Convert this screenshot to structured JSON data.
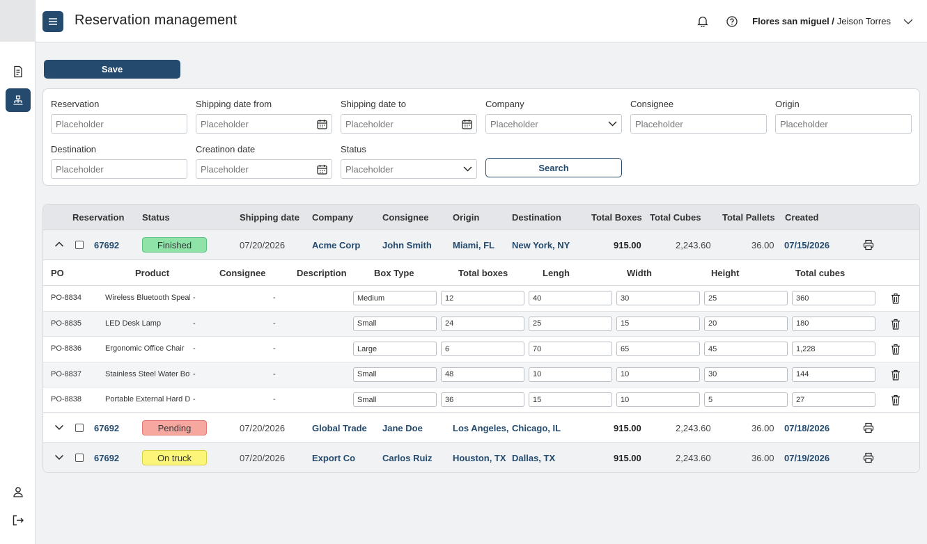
{
  "app": {
    "title": "Reservation management",
    "user_company": "Flores san miguel /",
    "user_name": "Jeison Torres"
  },
  "toolbar": {
    "save_label": "Save"
  },
  "filters": {
    "reservation": {
      "label": "Reservation",
      "placeholder": "Placeholder"
    },
    "shipping_from": {
      "label": "Shipping date from",
      "placeholder": "Placeholder"
    },
    "shipping_to": {
      "label": "Shipping date to",
      "placeholder": "Placeholder"
    },
    "company": {
      "label": "Company",
      "placeholder": "Placeholder"
    },
    "consignee": {
      "label": "Consignee",
      "placeholder": "Placeholder"
    },
    "origin": {
      "label": "Origin",
      "placeholder": "Placeholder"
    },
    "destination": {
      "label": "Destination",
      "placeholder": "Placeholder"
    },
    "creation_date": {
      "label": "Creatinon date",
      "placeholder": "Placeholder"
    },
    "status": {
      "label": "Status",
      "placeholder": "Placeholder"
    },
    "search_label": "Search"
  },
  "table": {
    "columns": {
      "reservation": "Reservation",
      "status": "Status",
      "shipping_date": "Shipping date",
      "company": "Company",
      "consignee": "Consignee",
      "origin": "Origin",
      "destination": "Destination",
      "total_boxes": "Total Boxes",
      "total_cubes": "Total Cubes",
      "total_pallets": "Total Pallets",
      "created": "Created"
    },
    "rows": [
      {
        "id": "67692",
        "status": "Finished",
        "shipping_date": "07/20/2026",
        "company": "Acme Corp",
        "consignee": "John Smith",
        "origin": "Miami, FL",
        "destination": "New York, NY",
        "total_boxes": "915.00",
        "total_cubes": "2,243.60",
        "total_pallets": "36.00",
        "created": "07/15/2026"
      },
      {
        "id": "67692",
        "status": "Pending",
        "shipping_date": "07/20/2026",
        "company": "Global Trade",
        "consignee": "Jane Doe",
        "origin": "Los Angeles, CA",
        "destination": "Chicago, IL",
        "total_boxes": "915.00",
        "total_cubes": "2,243.60",
        "total_pallets": "36.00",
        "created": "07/18/2026"
      },
      {
        "id": "67692",
        "status": "On truck",
        "shipping_date": "07/20/2026",
        "company": "Export Co",
        "consignee": "Carlos Ruiz",
        "origin": "Houston, TX",
        "destination": "Dallas, TX",
        "total_boxes": "915.00",
        "total_cubes": "2,243.60",
        "total_pallets": "36.00",
        "created": "07/19/2026"
      }
    ],
    "status_colors": {
      "finished_bg": "#8fe3a9",
      "finished_border": "#5cc27d",
      "pending_bg": "#f6a7a0",
      "pending_border": "#e37b72",
      "ontruck_bg": "#fbf57a",
      "ontruck_border": "#d6cf3e"
    }
  },
  "detail": {
    "columns": {
      "po": "PO",
      "product": "Product",
      "consignee": "Consignee",
      "description": "Description",
      "box_type": "Box Type",
      "total_boxes": "Total boxes",
      "length": "Lengh",
      "width": "Width",
      "height": "Height",
      "total_cubes": "Total cubes"
    },
    "items": [
      {
        "po": "PO-8834",
        "product": "Wireless Bluetooth Speaker",
        "consignee": "-",
        "description": "-",
        "box_type": "Medium",
        "total_boxes": "12",
        "length": "40",
        "width": "30",
        "height": "25",
        "total_cubes": "360"
      },
      {
        "po": "PO-8835",
        "product": "LED Desk Lamp",
        "consignee": "-",
        "description": "-",
        "box_type": "Small",
        "total_boxes": "24",
        "length": "25",
        "width": "15",
        "height": "20",
        "total_cubes": "180"
      },
      {
        "po": "PO-8836",
        "product": "Ergonomic Office Chair",
        "consignee": "-",
        "description": "-",
        "box_type": "Large",
        "total_boxes": "6",
        "length": "70",
        "width": "65",
        "height": "45",
        "total_cubes": "1,228"
      },
      {
        "po": "PO-8837",
        "product": "Stainless Steel Water Bottle",
        "consignee": "-",
        "description": "-",
        "box_type": "Small",
        "total_boxes": "48",
        "length": "10",
        "width": "10",
        "height": "30",
        "total_cubes": "144"
      },
      {
        "po": "PO-8838",
        "product": "Portable External Hard Drive",
        "consignee": "-",
        "description": "-",
        "box_type": "Small",
        "total_boxes": "36",
        "length": "15",
        "width": "10",
        "height": "5",
        "total_cubes": "27"
      }
    ]
  },
  "icons": {
    "sidebar": [
      "document-list-icon",
      "network-icon",
      "user-icon",
      "logout-icon"
    ],
    "topbar": [
      "menu-icon",
      "bell-icon",
      "help-icon",
      "chevron-down-icon"
    ]
  }
}
